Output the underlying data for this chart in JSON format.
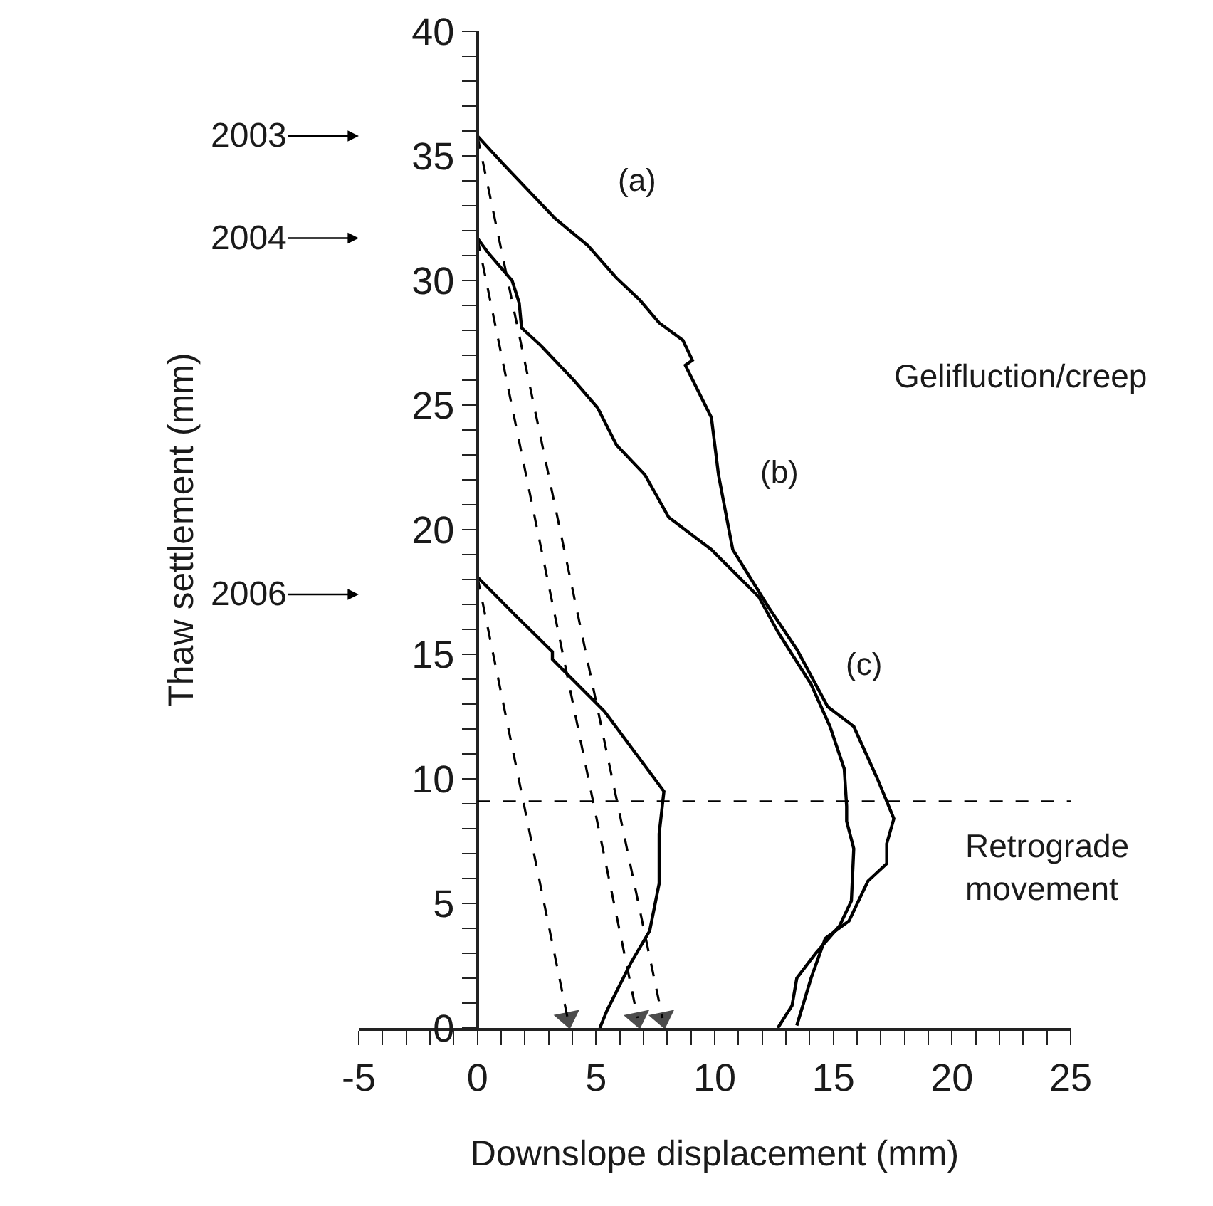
{
  "chart_data": {
    "type": "line",
    "xlabel": "Downslope displacement (mm)",
    "ylabel": "Thaw settlement (mm)",
    "xlim": [
      -5,
      25
    ],
    "xticks": [
      -5,
      {
        "value": -4,
        "label": null
      },
      {
        "value": -3,
        "label": null
      },
      {
        "value": -2,
        "label": null
      },
      {
        "value": -1,
        "label": null
      },
      0,
      {
        "value": 1,
        "label": null
      },
      {
        "value": 2,
        "label": null
      },
      {
        "value": 3,
        "label": null
      },
      {
        "value": 4,
        "label": null
      },
      5,
      {
        "value": 6,
        "label": null
      },
      {
        "value": 7,
        "label": null
      },
      {
        "value": 8,
        "label": null
      },
      {
        "value": 9,
        "label": null
      },
      10,
      {
        "value": 11,
        "label": null
      },
      {
        "value": 12,
        "label": null
      },
      {
        "value": 13,
        "label": null
      },
      {
        "value": 14,
        "label": null
      },
      15,
      {
        "value": 16,
        "label": null
      },
      {
        "value": 17,
        "label": null
      },
      {
        "value": 18,
        "label": null
      },
      {
        "value": 19,
        "label": null
      },
      20,
      {
        "value": 21,
        "label": null
      },
      {
        "value": 22,
        "label": null
      },
      {
        "value": 23,
        "label": null
      },
      {
        "value": 24,
        "label": null
      },
      25
    ],
    "ylim": [
      0,
      40
    ],
    "yticks": [
      0,
      {
        "value": 1,
        "label": null
      },
      {
        "value": 2,
        "label": null
      },
      {
        "value": 3,
        "label": null
      },
      {
        "value": 4,
        "label": null
      },
      5,
      {
        "value": 6,
        "label": null
      },
      {
        "value": 7,
        "label": null
      },
      {
        "value": 8,
        "label": null
      },
      {
        "value": 9,
        "label": null
      },
      10,
      {
        "value": 11,
        "label": null
      },
      {
        "value": 12,
        "label": null
      },
      {
        "value": 13,
        "label": null
      },
      {
        "value": 14,
        "label": null
      },
      15,
      {
        "value": 16,
        "label": null
      },
      {
        "value": 17,
        "label": null
      },
      {
        "value": 18,
        "label": null
      },
      {
        "value": 19,
        "label": null
      },
      20,
      {
        "value": 21,
        "label": null
      },
      {
        "value": 22,
        "label": null
      },
      {
        "value": 23,
        "label": null
      },
      {
        "value": 24,
        "label": null
      },
      25,
      {
        "value": 26,
        "label": null
      },
      {
        "value": 27,
        "label": null
      },
      {
        "value": 28,
        "label": null
      },
      {
        "value": 29,
        "label": null
      },
      30,
      {
        "value": 31,
        "label": null
      },
      {
        "value": 32,
        "label": null
      },
      {
        "value": 33,
        "label": null
      },
      {
        "value": 34,
        "label": null
      },
      35,
      {
        "value": 36,
        "label": null
      },
      {
        "value": 37,
        "label": null
      },
      {
        "value": 38,
        "label": null
      },
      {
        "value": 39,
        "label": null
      },
      40
    ],
    "series": [
      {
        "color": "#000000",
        "line_style": "solid",
        "marker": "none",
        "x": [
          0,
          1.06,
          2.06,
          3.26,
          4.66,
          5.86,
          6.86,
          7.66,
          8.66,
          9.06,
          8.76,
          9.86,
          10.16,
          10.76,
          12.26,
          13.46,
          14.76,
          15.86,
          16.86,
          17.55,
          17.25,
          17.25,
          16.46,
          15.66,
          14.66,
          14.06,
          13.46
        ],
        "values": [
          35.8,
          34.7,
          33.7,
          32.5,
          31.4,
          30.1,
          29.2,
          28.3,
          27.6,
          26.8,
          26.6,
          24.5,
          22.2,
          19.2,
          16.9,
          15.2,
          12.9,
          12.1,
          10.0,
          8.4,
          7.4,
          6.6,
          5.9,
          4.3,
          3.6,
          2.0,
          0.1
        ]
      },
      {
        "color": "#000000",
        "line_style": "solid",
        "marker": "none",
        "x": [
          0,
          0.46,
          1.46,
          1.76,
          1.86,
          2.66,
          4.06,
          5.06,
          5.86,
          7.06,
          8.06,
          9.86,
          11.86,
          12.66,
          13.26,
          14.06,
          14.86,
          15.46,
          15.56,
          15.56,
          15.86,
          15.76,
          15.26,
          14.26,
          13.46,
          13.26,
          12.66
        ],
        "values": [
          31.7,
          31.1,
          30.0,
          29.1,
          28.1,
          27.4,
          26.0,
          24.9,
          23.4,
          22.2,
          20.5,
          19.2,
          17.3,
          15.9,
          15.0,
          13.8,
          12.1,
          10.4,
          8.9,
          8.3,
          7.2,
          5.1,
          4.1,
          3.0,
          2.0,
          0.9,
          0
        ]
      },
      {
        "color": "#000000",
        "line_style": "solid",
        "marker": "none",
        "x": [
          0,
          1.56,
          3.16,
          3.16,
          5.36,
          7.86,
          7.66,
          7.66,
          7.26,
          6.46,
          5.46,
          5.16
        ],
        "values": [
          18.1,
          16.6,
          15.1,
          14.8,
          12.7,
          9.5,
          7.8,
          5.8,
          3.9,
          2.6,
          0.7,
          0
        ]
      },
      {
        "color": "#000000",
        "line_style": "dashed",
        "marker": "triangle",
        "x": [
          0,
          7.8
        ],
        "values": [
          35.8,
          0.4
        ]
      },
      {
        "color": "#000000",
        "line_style": "dashed",
        "marker": "triangle",
        "x": [
          0,
          6.75
        ],
        "values": [
          31.7,
          0.4
        ]
      },
      {
        "color": "#000000",
        "line_style": "dashed",
        "marker": "triangle",
        "x": [
          0,
          3.8
        ],
        "values": [
          18.1,
          0.4
        ]
      }
    ],
    "ref_lines": [
      {
        "axis": "y",
        "value": 9.1,
        "line_style": "dashed",
        "color": "#000000"
      }
    ],
    "annotations": [
      "2003",
      "2004",
      "2006",
      "(a)",
      "(b)",
      "(c)",
      "Gelifluction/creep",
      "Retrograde movement"
    ]
  }
}
